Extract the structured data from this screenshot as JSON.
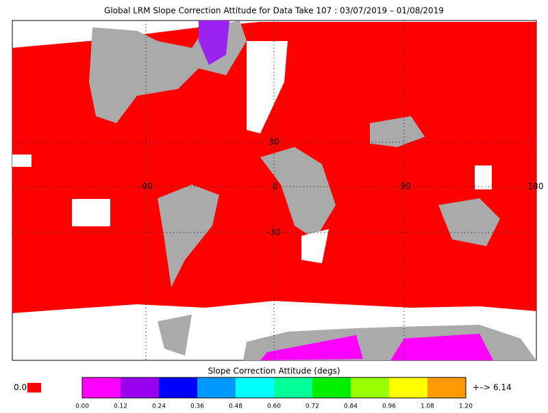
{
  "title": "Global LRM Slope Correction Attitude for Data Take 107 : 03/07/2019 – 01/08/2019",
  "map": {
    "lon_labels": [
      "-90",
      "0",
      "90",
      "180"
    ],
    "lat_labels": [
      "30",
      "-30"
    ]
  },
  "colorbar": {
    "label": "Slope Correction Attitude (degs)",
    "colors": [
      "#ff00ff",
      "#9900ee",
      "#0000ff",
      "#0099ff",
      "#00ffff",
      "#00ff99",
      "#00ee00",
      "#99ff00",
      "#ffff00",
      "#ff9900"
    ],
    "ticks": [
      "0.00",
      "0.12",
      "0.24",
      "0.36",
      "0.48",
      "0.60",
      "0.72",
      "0.84",
      "0.96",
      "1.08",
      "1.20"
    ],
    "under_label": "0.0",
    "under_color": "#ff0000",
    "over_arrow": "+–>",
    "over_value": "6.14",
    "over_color": "#ff9900"
  }
}
